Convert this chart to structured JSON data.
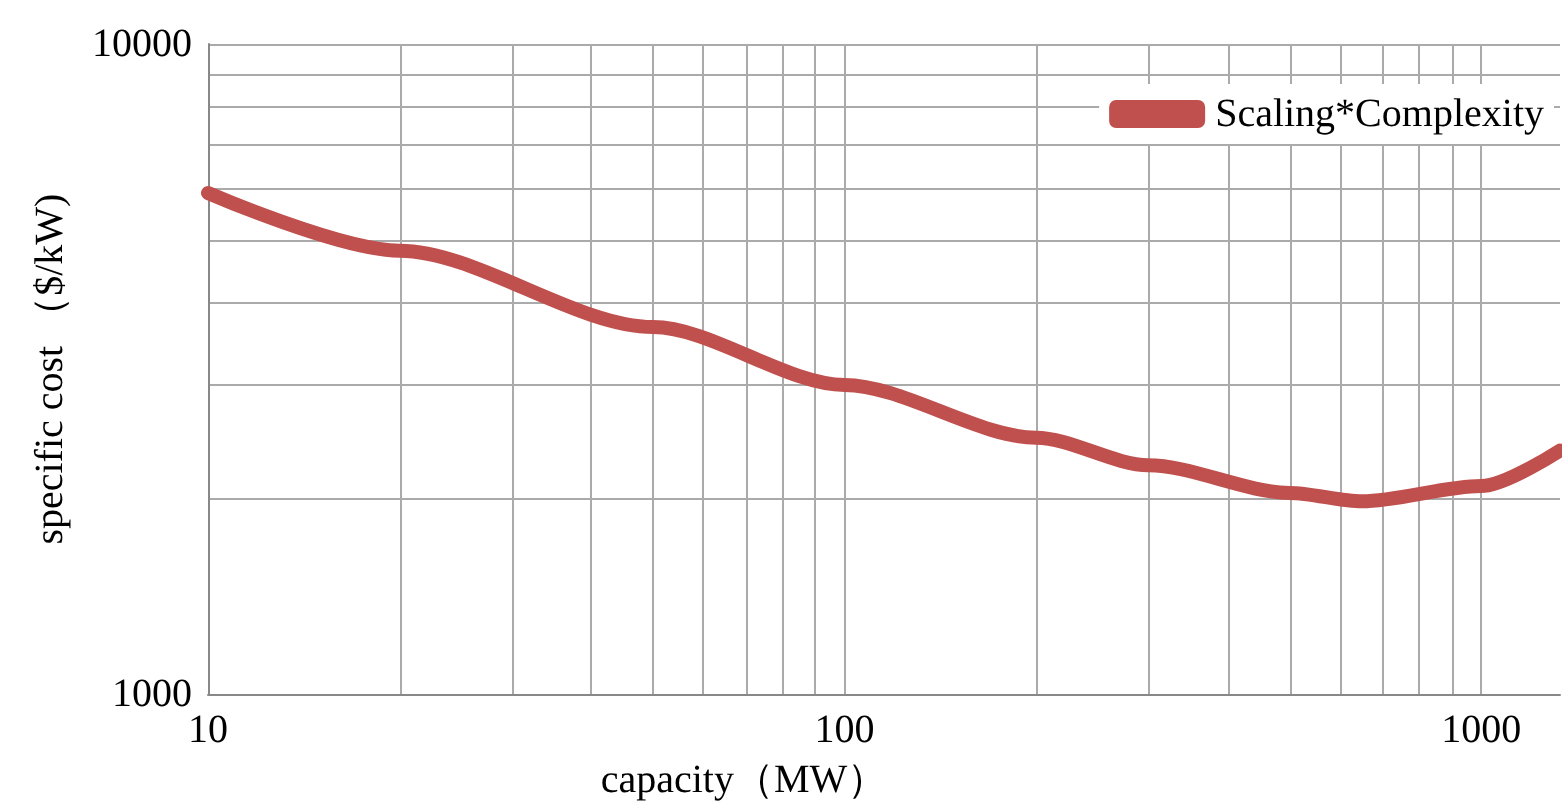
{
  "chart_data": {
    "type": "line",
    "xlabel": "capacity（MW）",
    "ylabel": "specific cost （$/kW)",
    "log": "xy",
    "grid": true,
    "legend": "top right",
    "line_style": "solid",
    "xlim": [
      10,
      1330
    ],
    "ylim": [
      1000,
      10000
    ],
    "xticks": [
      10,
      {
        "value": 20,
        "label": null
      },
      {
        "value": 30,
        "label": null
      },
      {
        "value": 40,
        "label": null
      },
      {
        "value": 50,
        "label": null
      },
      {
        "value": 60,
        "label": null
      },
      {
        "value": 70,
        "label": null
      },
      {
        "value": 80,
        "label": null
      },
      {
        "value": 90,
        "label": null
      },
      100,
      {
        "value": 200,
        "label": null
      },
      {
        "value": 300,
        "label": null
      },
      {
        "value": 400,
        "label": null
      },
      {
        "value": 500,
        "label": null
      },
      {
        "value": 600,
        "label": null
      },
      {
        "value": 700,
        "label": null
      },
      {
        "value": 800,
        "label": null
      },
      {
        "value": 900,
        "label": null
      },
      1000
    ],
    "yticks": [
      1000,
      {
        "value": 2000,
        "label": null
      },
      {
        "value": 3000,
        "label": null
      },
      {
        "value": 4000,
        "label": null
      },
      {
        "value": 5000,
        "label": null
      },
      {
        "value": 6000,
        "label": null
      },
      {
        "value": 7000,
        "label": null
      },
      {
        "value": 8000,
        "label": null
      },
      {
        "value": 9000,
        "label": null
      },
      10000
    ],
    "series": [
      {
        "name": "Scaling*Complexity",
        "color": "#c0504d",
        "x": [
          10,
          20,
          50,
          100,
          200,
          300,
          500,
          650,
          1000,
          1330
        ],
        "values": [
          5900,
          4810,
          3670,
          2990,
          2480,
          2250,
          2040,
          1980,
          2090,
          2370
        ]
      }
    ]
  }
}
